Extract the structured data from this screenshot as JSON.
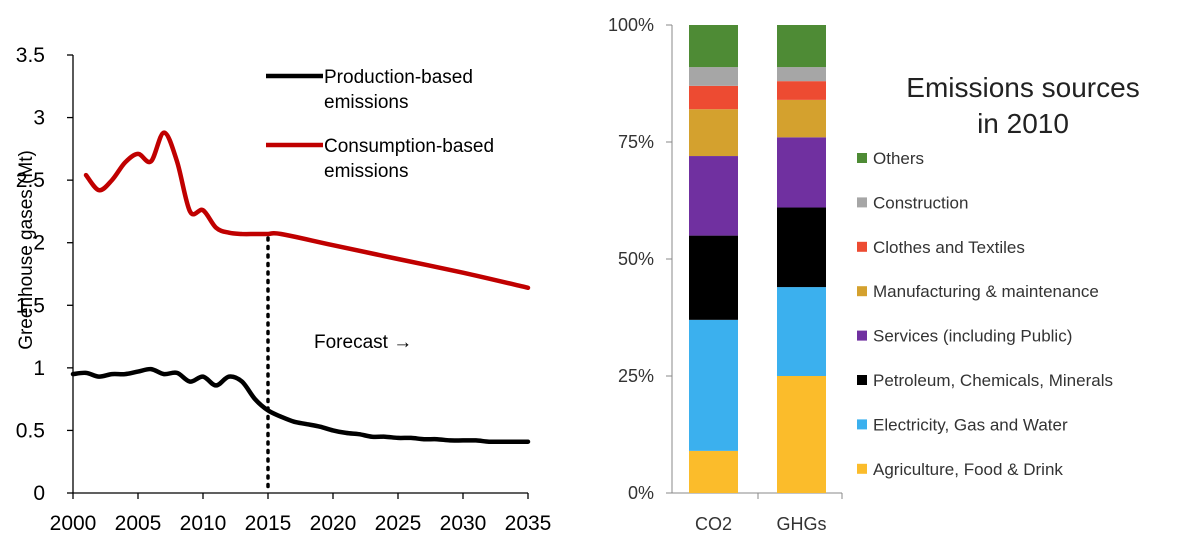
{
  "chart_data": [
    {
      "type": "line",
      "ylabel": "Greenhouse gases (Mt)",
      "xlim": [
        2000,
        2035
      ],
      "ylim": [
        0,
        3.5
      ],
      "x_ticks": [
        "2000",
        "2005",
        "2010",
        "2015",
        "2020",
        "2025",
        "2030",
        "2035"
      ],
      "y_ticks": [
        "0",
        "0.5",
        "1",
        "1.5",
        "2",
        "2.5",
        "3",
        "3.5"
      ],
      "grid": false,
      "legend_position": "top-right",
      "annotation": "Forecast →",
      "forecast_start": 2015,
      "series": [
        {
          "name": "Production-based emissions",
          "legend_lines": [
            "Production-based",
            "emissions"
          ],
          "color": "#000000",
          "x": [
            2000,
            2001,
            2002,
            2003,
            2004,
            2005,
            2006,
            2007,
            2008,
            2009,
            2010,
            2011,
            2012,
            2013,
            2014,
            2015,
            2016,
            2017,
            2018,
            2019,
            2020,
            2021,
            2022,
            2023,
            2024,
            2025,
            2026,
            2027,
            2028,
            2029,
            2030,
            2031,
            2032,
            2033,
            2034,
            2035
          ],
          "y": [
            0.95,
            0.96,
            0.93,
            0.95,
            0.95,
            0.97,
            0.99,
            0.95,
            0.96,
            0.89,
            0.93,
            0.86,
            0.93,
            0.89,
            0.75,
            0.66,
            0.61,
            0.57,
            0.55,
            0.53,
            0.5,
            0.48,
            0.47,
            0.45,
            0.45,
            0.44,
            0.44,
            0.43,
            0.43,
            0.42,
            0.42,
            0.42,
            0.41,
            0.41,
            0.41,
            0.41
          ]
        },
        {
          "name": "Consumption-based emissions",
          "legend_lines": [
            "Consumption-based",
            "emissions"
          ],
          "color": "#c00000",
          "x": [
            2001,
            2002,
            2003,
            2004,
            2005,
            2006,
            2007,
            2008,
            2009,
            2010,
            2011,
            2012,
            2013,
            2014,
            2015,
            2016,
            2020,
            2025,
            2030,
            2035
          ],
          "y": [
            2.54,
            2.42,
            2.5,
            2.64,
            2.71,
            2.65,
            2.88,
            2.65,
            2.25,
            2.26,
            2.12,
            2.08,
            2.07,
            2.07,
            2.07,
            2.07,
            1.98,
            1.87,
            1.76,
            1.64
          ]
        }
      ]
    },
    {
      "type": "bar",
      "stacked": true,
      "title": "Emissions sources in 2010",
      "title_lines": [
        "Emissions sources",
        "in 2010"
      ],
      "categories": [
        "CO2",
        "GHGs"
      ],
      "y_ticks": [
        "0%",
        "25%",
        "50%",
        "75%",
        "100%"
      ],
      "ylim": [
        0,
        100
      ],
      "legend_position": "right",
      "series": [
        {
          "name": "Agriculture, Food & Drink",
          "color": "#fbbc2b",
          "values": [
            9,
            25
          ]
        },
        {
          "name": "Electricity, Gas and Water",
          "color": "#3bb0ee",
          "values": [
            28,
            19
          ]
        },
        {
          "name": "Petroleum, Chemicals, Minerals",
          "color": "#000000",
          "values": [
            18,
            17
          ]
        },
        {
          "name": "Services (including Public)",
          "color": "#7030a0",
          "values": [
            17,
            15
          ]
        },
        {
          "name": "Manufacturing & maintenance",
          "color": "#d4a12e",
          "values": [
            10,
            8
          ]
        },
        {
          "name": "Clothes and Textiles",
          "color": "#ed4b32",
          "values": [
            5,
            4
          ]
        },
        {
          "name": "Construction",
          "color": "#a6a6a6",
          "values": [
            4,
            3
          ]
        },
        {
          "name": "Others",
          "color": "#4e8b35",
          "values": [
            9,
            9
          ]
        }
      ]
    }
  ]
}
